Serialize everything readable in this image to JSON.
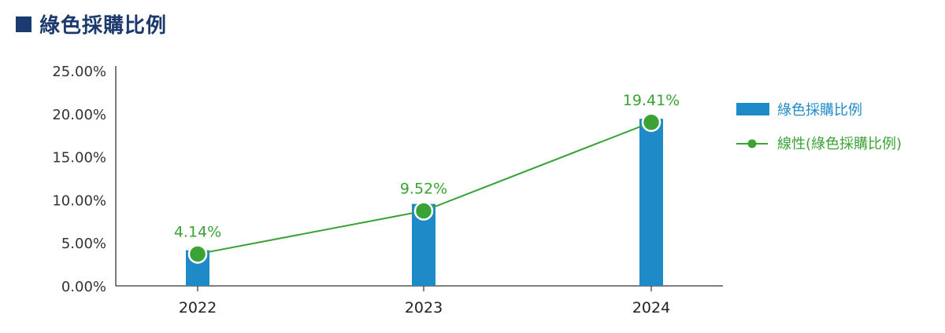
{
  "page": {
    "title": "綠色採購比例"
  },
  "colors": {
    "title": "#1c3a6e",
    "bar": "#1f8ac8",
    "line": "#3aa335",
    "axis": "#333333"
  },
  "chart_data": {
    "type": "bar",
    "title": "綠色採購比例",
    "categories": [
      "2022",
      "2023",
      "2024"
    ],
    "series": [
      {
        "name": "綠色採購比例",
        "type": "bar",
        "values": [
          4.14,
          9.52,
          19.41
        ]
      },
      {
        "name": "線性(綠色採購比例)",
        "type": "line",
        "values": [
          3.7,
          8.7,
          19.0
        ]
      }
    ],
    "data_labels": [
      "4.14%",
      "9.52%",
      "19.41%"
    ],
    "y_ticks": [
      "0.00%",
      "5.00%",
      "10.00%",
      "15.00%",
      "20.00%",
      "25.00%"
    ],
    "ylim": [
      0,
      25
    ],
    "grid": false,
    "legend_position": "right"
  }
}
